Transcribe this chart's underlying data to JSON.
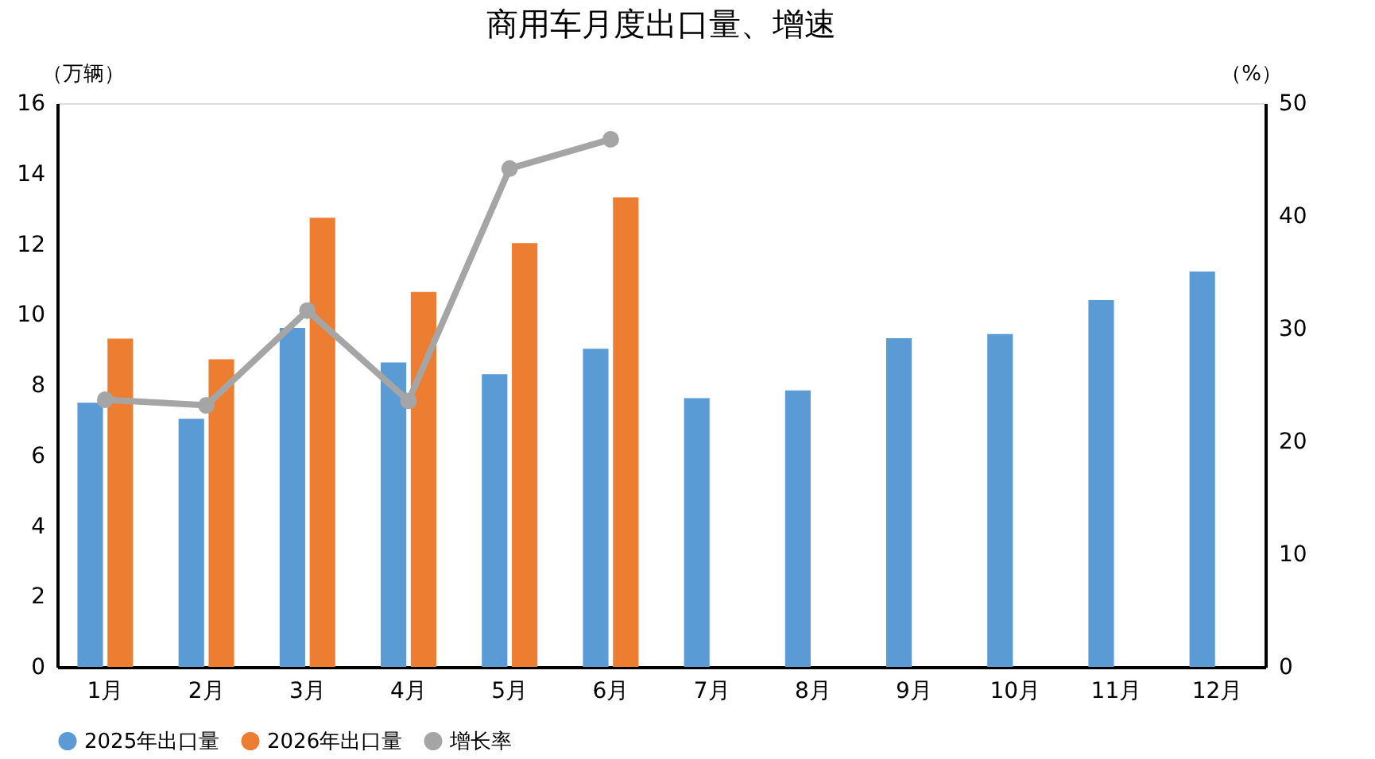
{
  "chart_data": {
    "type": "bar",
    "title": "商用车月度出口量、增速",
    "categories": [
      "1月",
      "2月",
      "3月",
      "4月",
      "5月",
      "6月",
      "7月",
      "8月",
      "9月",
      "10月",
      "11月",
      "12月"
    ],
    "series": [
      {
        "name": "2025年出口量",
        "color": "#5b9bd5",
        "values": [
          7.5,
          7.04,
          9.62,
          8.64,
          8.31,
          9.03,
          7.63,
          7.85,
          9.33,
          9.45,
          10.41,
          11.22
        ]
      },
      {
        "name": "2026年出口量",
        "color": "#ed7d31",
        "values": [
          9.32,
          8.73,
          12.75,
          10.64,
          12.03,
          13.33,
          null,
          null,
          null,
          null,
          null,
          null
        ]
      },
      {
        "name": "增长率",
        "color": "#a5a5a5",
        "type": "line",
        "axis": "y2",
        "marker": "circle",
        "values": [
          23.7,
          23.2,
          31.6,
          23.6,
          44.2,
          46.8,
          null,
          null,
          null,
          null,
          null,
          null
        ]
      }
    ],
    "ylabel": "（万辆）",
    "y2label": "（%）",
    "ylim": [
      0,
      16
    ],
    "yticks": [
      0,
      2,
      4,
      6,
      8,
      10,
      12,
      14,
      16
    ],
    "y2lim": [
      0,
      50
    ],
    "y2ticks": [
      0,
      10,
      20,
      30,
      40,
      50
    ],
    "grid": false,
    "legend": "bottom"
  }
}
